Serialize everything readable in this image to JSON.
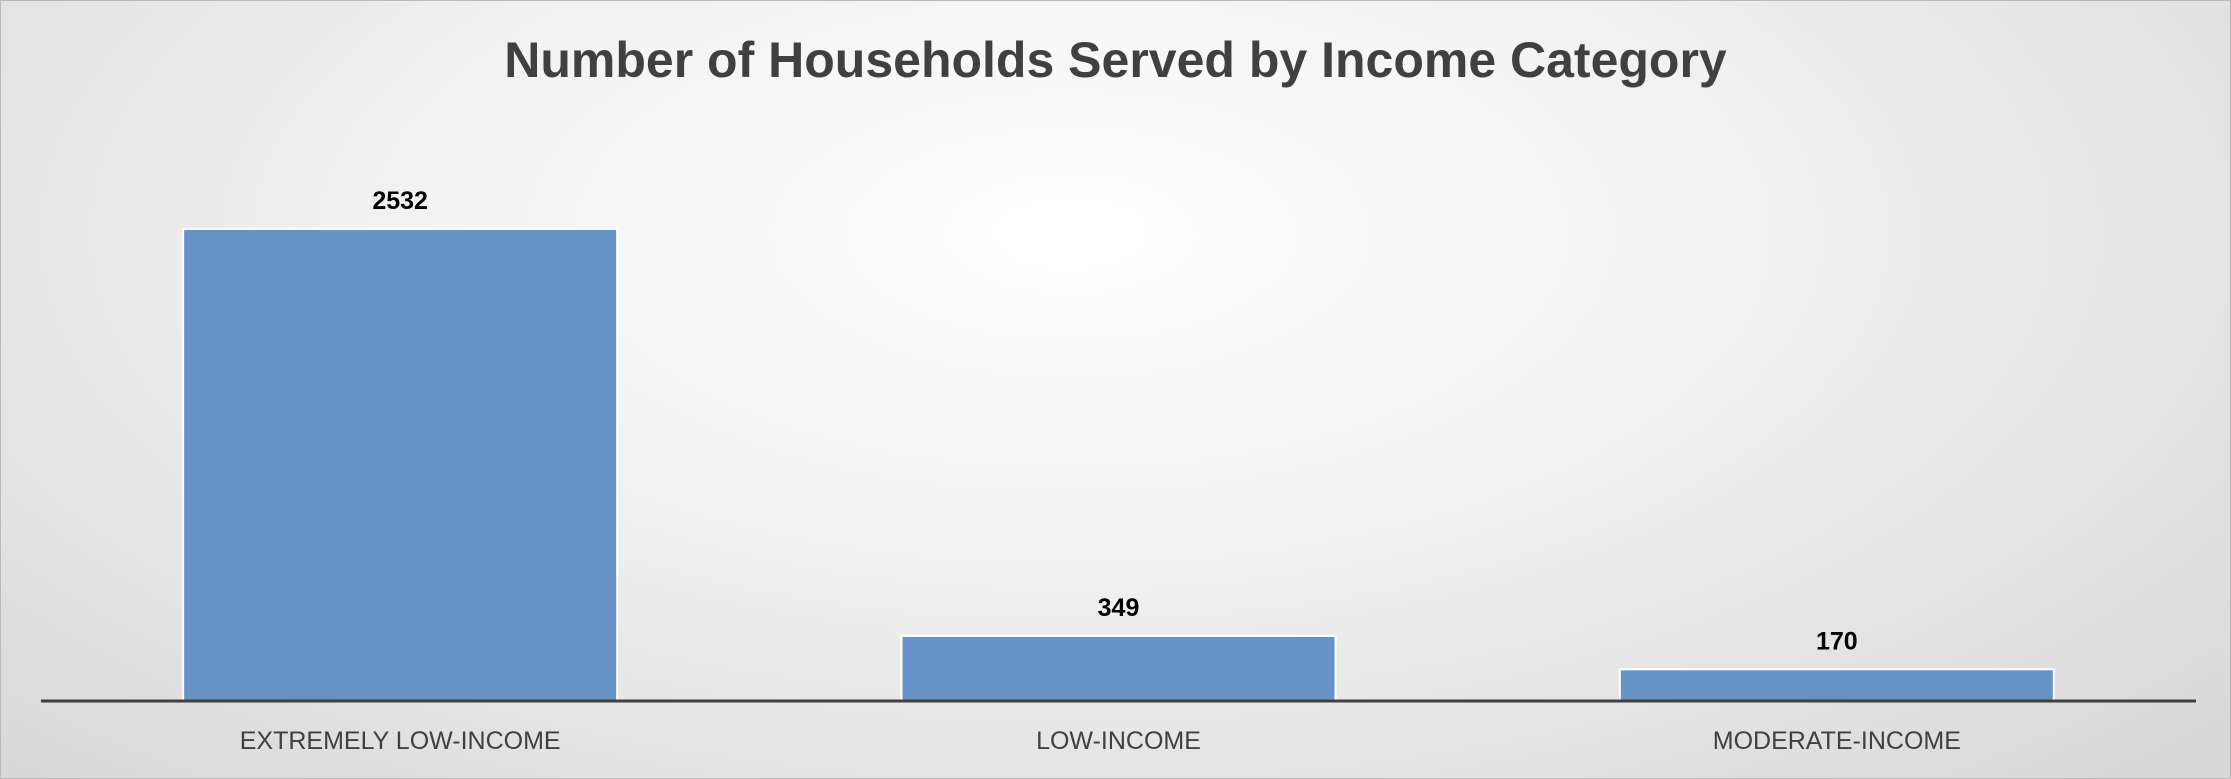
{
  "chart_data": {
    "type": "bar",
    "title": "Number of Households Served by Income Category",
    "categories": [
      "EXTREMELY LOW-INCOME",
      "LOW-INCOME",
      "MODERATE-INCOME"
    ],
    "series": [
      {
        "values": [
          2532,
          349,
          170
        ]
      }
    ],
    "data_labels": [
      "2532",
      "349",
      "170"
    ],
    "xlabel": "",
    "ylabel": "",
    "ylim": [
      0,
      2532
    ],
    "grid": false,
    "legend": "none",
    "colors": {
      "bar": "#6792c6",
      "baseline": "#404040",
      "title": "#404040"
    }
  }
}
